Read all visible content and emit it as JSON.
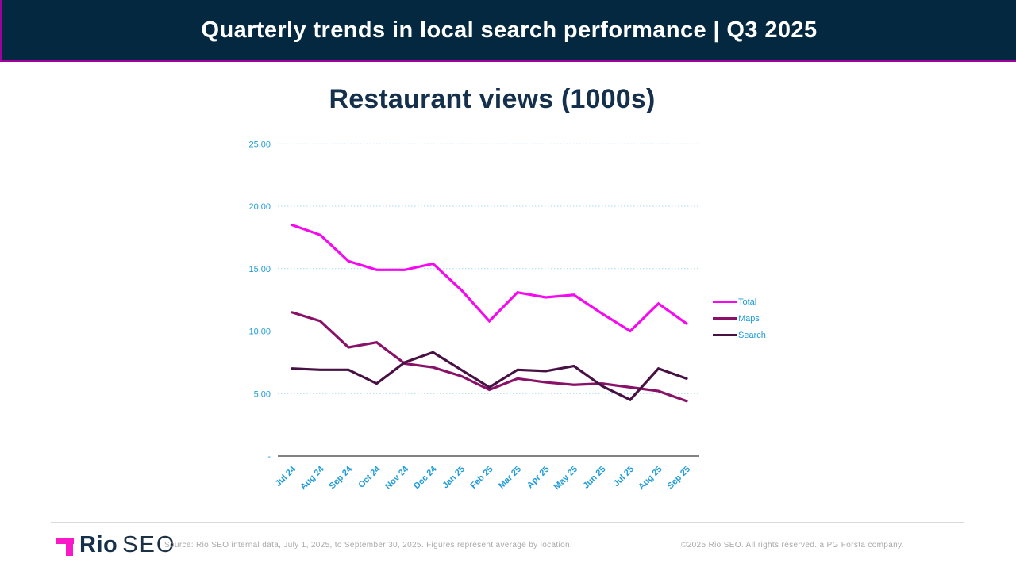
{
  "slide": {
    "title": "Quarterly trends in local search performance | Q3 2025"
  },
  "chart_data": {
    "type": "line",
    "title": "Restaurant views (1000s)",
    "categories": [
      "Jul 24",
      "Aug 24",
      "Sep 24",
      "Oct 24",
      "Nov 24",
      "Dec 24",
      "Jan 25",
      "Feb 25",
      "Mar 25",
      "Apr 25",
      "May 25",
      "Jun 25",
      "Jul 25",
      "Aug 25",
      "Sep 25"
    ],
    "series": [
      {
        "name": "Total",
        "color": "#F608F0",
        "values": [
          18.5,
          17.7,
          15.6,
          14.9,
          14.9,
          15.4,
          13.3,
          10.8,
          13.1,
          12.7,
          12.9,
          11.4,
          10.0,
          12.2,
          10.6
        ]
      },
      {
        "name": "Maps",
        "color": "#8A1168",
        "values": [
          11.5,
          10.8,
          8.7,
          9.1,
          7.4,
          7.1,
          6.4,
          5.3,
          6.2,
          5.9,
          5.7,
          5.8,
          5.5,
          5.2,
          4.4
        ]
      },
      {
        "name": "Search",
        "color": "#471144",
        "values": [
          7.0,
          6.9,
          6.9,
          5.8,
          7.5,
          8.3,
          6.9,
          5.5,
          6.9,
          6.8,
          7.2,
          5.6,
          4.5,
          7.0,
          6.2
        ]
      }
    ],
    "y_ticks": [
      25,
      20,
      15,
      10,
      5
    ],
    "y_tick_labels": [
      "25.00",
      "20.00",
      "15.00",
      "10.00",
      "5.00"
    ],
    "zero_label": "-",
    "ylim": [
      0,
      25
    ],
    "grid": "horizontal-dashed",
    "legend_position": "right"
  },
  "colors": {
    "header_bg": "#032840",
    "header_accent": "#A0009E",
    "axis_labels": "#1F9CD8",
    "gridline": "#A6D9EF",
    "axis_line": "#595959",
    "title_text": "#14304C",
    "footer_text": "#A9A9A9",
    "logo_pink": "#F81AC6"
  },
  "footer": {
    "brand_bold": "Rio",
    "brand_light": "SEO",
    "source": "Source: Rio SEO internal data, July 1, 2025, to September 30, 2025. Figures represent average by location.",
    "copyright": "©2025 Rio SEO. All rights reserved. a PG Forsta company."
  }
}
